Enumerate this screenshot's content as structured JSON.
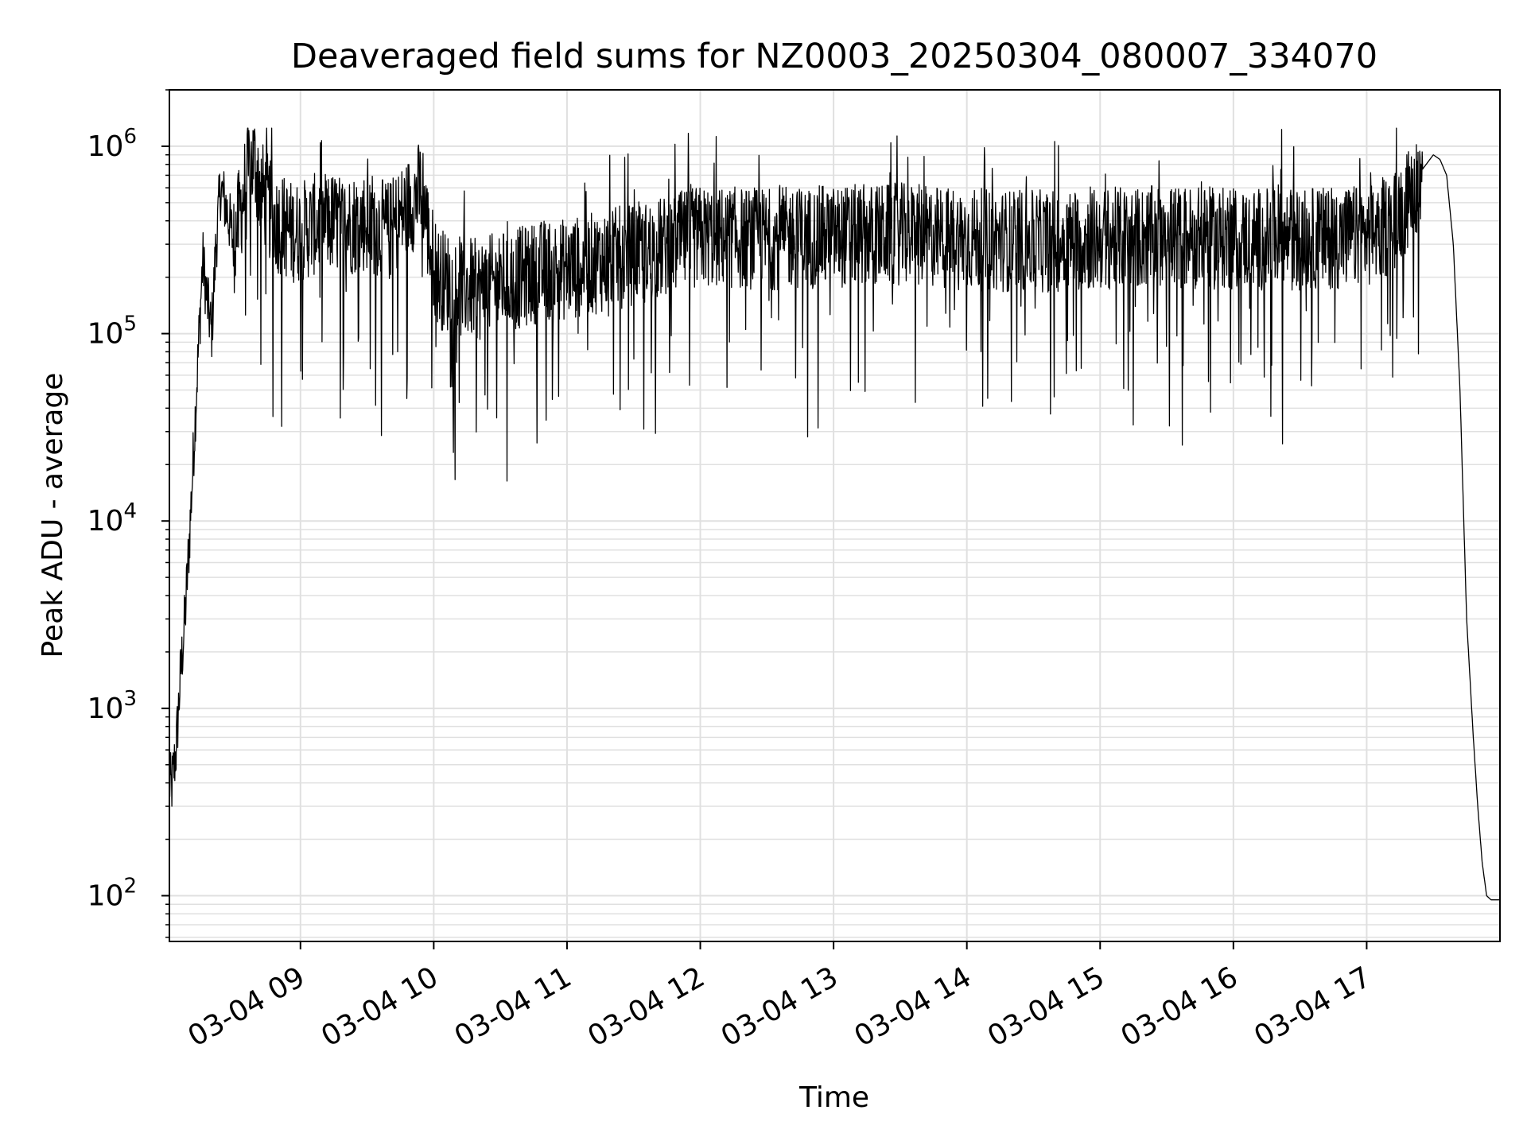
{
  "chart_data": {
    "type": "line",
    "title": "Deaveraged field sums for NZ0003_20250304_080007_334070",
    "xlabel": "Time",
    "ylabel": "Peak ADU - average",
    "xlim": [
      "2025-03-04T08:01:00",
      "2025-03-04T18:00:00"
    ],
    "ylim": [
      57,
      2000000
    ],
    "y_scale": "log",
    "grid": true,
    "line_color": "#000000",
    "grid_color": "#e0e0e0",
    "x_ticks": [
      "2025-03-04T09:00:00",
      "2025-03-04T10:00:00",
      "2025-03-04T11:00:00",
      "2025-03-04T12:00:00",
      "2025-03-04T13:00:00",
      "2025-03-04T14:00:00",
      "2025-03-04T15:00:00",
      "2025-03-04T16:00:00",
      "2025-03-04T17:00:00"
    ],
    "x_tick_labels": [
      "03-04 09",
      "03-04 10",
      "03-04 11",
      "03-04 12",
      "03-04 13",
      "03-04 14",
      "03-04 15",
      "03-04 16",
      "03-04 17"
    ],
    "y_ticks": [
      100,
      1000,
      10000,
      100000,
      1000000
    ],
    "y_tick_labels": [
      {
        "base": "10",
        "exp": "2"
      },
      {
        "base": "10",
        "exp": "3"
      },
      {
        "base": "10",
        "exp": "4"
      },
      {
        "base": "10",
        "exp": "5"
      },
      {
        "base": "10",
        "exp": "6"
      }
    ],
    "series": [
      {
        "x": [
          "2025-03-04T08:01:00",
          "2025-03-04T08:02:00",
          "2025-03-04T08:04:00",
          "2025-03-04T08:06:00",
          "2025-03-04T08:08:00",
          "2025-03-04T08:10:00",
          "2025-03-04T08:12:00",
          "2025-03-04T08:14:00",
          "2025-03-04T08:16:00",
          "2025-03-04T08:18:00",
          "2025-03-04T08:20:00",
          "2025-03-04T08:22:00",
          "2025-03-04T08:24:00",
          "2025-03-04T08:26:00",
          "2025-03-04T08:28:00",
          "2025-03-04T08:30:00",
          "2025-03-04T08:33:00",
          "2025-03-04T08:36:00",
          "2025-03-04T08:39:00",
          "2025-03-04T08:42:00",
          "2025-03-04T08:45:00",
          "2025-03-04T08:48:00",
          "2025-03-04T08:52:00",
          "2025-03-04T08:56:00",
          "2025-03-04T09:00:00",
          "2025-03-04T09:10:00",
          "2025-03-04T09:20:00",
          "2025-03-04T09:30:00",
          "2025-03-04T09:40:00",
          "2025-03-04T09:50:00",
          "2025-03-04T09:55:00",
          "2025-03-04T09:58:00",
          "2025-03-04T10:02:00",
          "2025-03-04T10:10:00",
          "2025-03-04T10:20:00",
          "2025-03-04T10:30:00",
          "2025-03-04T10:40:00",
          "2025-03-04T10:50:00",
          "2025-03-04T11:00:00",
          "2025-03-04T11:20:00",
          "2025-03-04T11:40:00",
          "2025-03-04T12:00:00",
          "2025-03-04T12:30:00",
          "2025-03-04T13:00:00",
          "2025-03-04T13:30:00",
          "2025-03-04T14:00:00",
          "2025-03-04T14:30:00",
          "2025-03-04T15:00:00",
          "2025-03-04T15:30:00",
          "2025-03-04T16:00:00",
          "2025-03-04T16:30:00",
          "2025-03-04T17:00:00",
          "2025-03-04T17:10:00",
          "2025-03-04T17:20:00",
          "2025-03-04T17:25:00",
          "2025-03-04T17:30:00",
          "2025-03-04T17:33:00",
          "2025-03-04T17:36:00",
          "2025-03-04T17:39:00",
          "2025-03-04T17:42:00",
          "2025-03-04T17:45:00",
          "2025-03-04T17:48:00",
          "2025-03-04T17:50:00",
          "2025-03-04T17:52:00",
          "2025-03-04T17:54:00",
          "2025-03-04T17:56:00",
          "2025-03-04T17:58:00",
          "2025-03-04T18:00:00"
        ],
        "y": [
          400,
          380,
          600,
          1500,
          3000,
          8000,
          25000,
          80000,
          250000,
          150000,
          100000,
          300000,
          600000,
          500000,
          400000,
          300000,
          450000,
          700000,
          850000,
          600000,
          500000,
          400000,
          380000,
          350000,
          350000,
          400000,
          380000,
          400000,
          350000,
          500000,
          600000,
          300000,
          200000,
          180000,
          170000,
          190000,
          200000,
          220000,
          220000,
          250000,
          280000,
          330000,
          320000,
          330000,
          340000,
          320000,
          310000,
          320000,
          330000,
          320000,
          320000,
          330000,
          380000,
          550000,
          750000,
          900000,
          850000,
          700000,
          300000,
          50000,
          3000,
          700,
          300,
          150,
          100,
          95,
          95,
          95
        ],
        "jitter": "dense noise roughly 1e5 – 1e6 with occasional dips down to ~3e4"
      }
    ]
  }
}
